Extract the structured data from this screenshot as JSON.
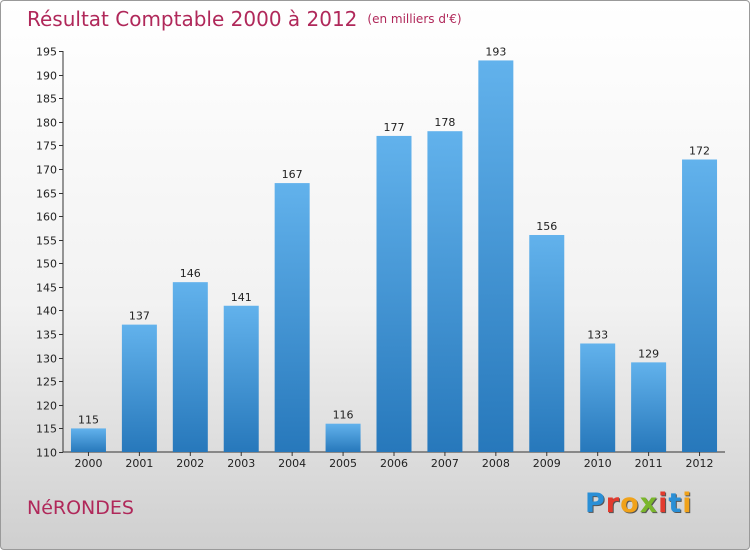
{
  "title": "Résultat Comptable 2000 à 2012",
  "unit": "(en milliers d'€)",
  "commune": "NéRONDES",
  "brand": {
    "letters": [
      "P",
      "r",
      "o",
      "x",
      "i",
      "t",
      "i"
    ],
    "colors": [
      "#2a8fd6",
      "#e23a2e",
      "#f0a21a",
      "#7ab62c",
      "#e23a2e",
      "#2a8fd6",
      "#f0a21a"
    ]
  },
  "colors": {
    "title": "#b0285a",
    "bar_light": "#5fb0ea",
    "bar_dark": "#2a7fc2"
  },
  "chart_data": {
    "type": "bar",
    "title": "Résultat Comptable 2000 à 2012",
    "xlabel": "",
    "ylabel": "",
    "categories": [
      "2000",
      "2001",
      "2002",
      "2003",
      "2004",
      "2005",
      "2006",
      "2007",
      "2008",
      "2009",
      "2010",
      "2011",
      "2012"
    ],
    "values": [
      115,
      137,
      146,
      141,
      167,
      116,
      177,
      178,
      193,
      156,
      133,
      129,
      172
    ],
    "ylim": [
      110,
      195
    ],
    "yticks": [
      110,
      115,
      120,
      125,
      130,
      135,
      140,
      145,
      150,
      155,
      160,
      165,
      170,
      175,
      180,
      185,
      190,
      195
    ],
    "grid": false
  }
}
